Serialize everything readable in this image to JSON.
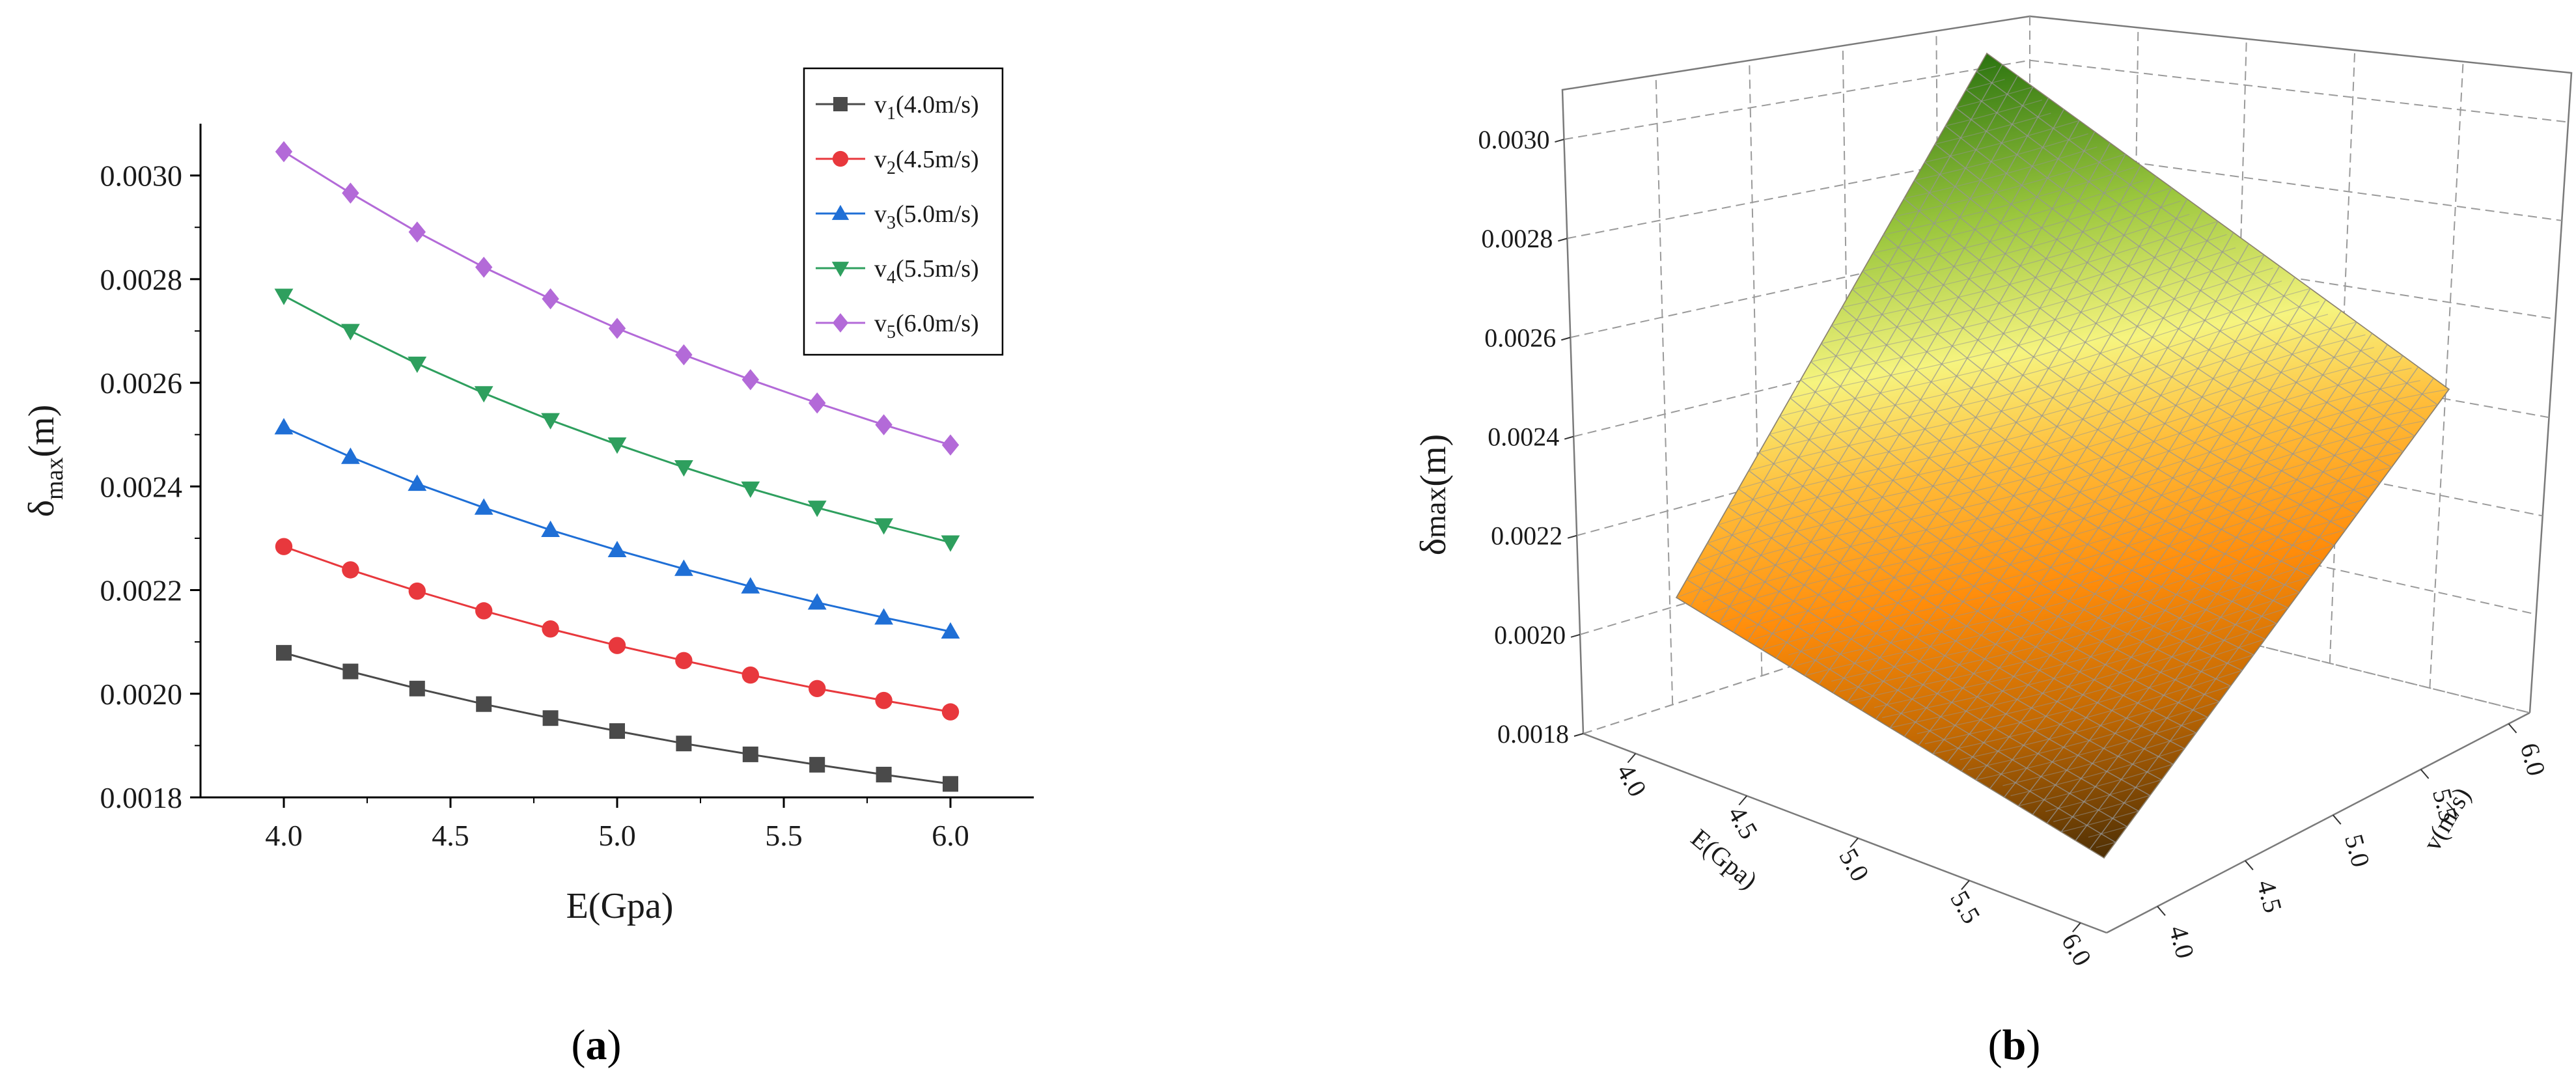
{
  "chart_data": [
    {
      "type": "line",
      "panel_label": {
        "open": "(",
        "letter": "a",
        "close": ")"
      },
      "xlabel": "E(Gpa)",
      "ylabel": {
        "base": "δ",
        "sub": "max",
        "suffix": "(m)"
      },
      "x": [
        4.0,
        4.2,
        4.4,
        4.6,
        4.8,
        5.0,
        5.2,
        5.4,
        5.6,
        5.8,
        6.0
      ],
      "xlim": [
        3.75,
        6.25
      ],
      "ylim": [
        0.0018,
        0.0031
      ],
      "xticks": [
        "4.0",
        "4.5",
        "5.0",
        "5.5",
        "6.0"
      ],
      "xtick_values": [
        4.0,
        4.5,
        5.0,
        5.5,
        6.0
      ],
      "yticks": [
        "0.0018",
        "0.0020",
        "0.0022",
        "0.0024",
        "0.0026",
        "0.0028",
        "0.0030"
      ],
      "ytick_values": [
        0.0018,
        0.002,
        0.0022,
        0.0024,
        0.0026,
        0.0028,
        0.003
      ],
      "legend_position": "top-right",
      "series": [
        {
          "name": "v1(4.0m/s)",
          "label": {
            "v": "v",
            "sub": "1",
            "rest": "(4.0m/s)"
          },
          "color": "#4a4a4a",
          "marker": "square",
          "values": [
            0.002079,
            0.002043,
            0.00201,
            0.00198,
            0.001953,
            0.001928,
            0.001904,
            0.001883,
            0.001863,
            0.001844,
            0.001826
          ]
        },
        {
          "name": "v2(4.5m/s)",
          "label": {
            "v": "v",
            "sub": "2",
            "rest": "(4.5m/s)"
          },
          "color": "#e8383d",
          "marker": "circle",
          "values": [
            0.002284,
            0.002239,
            0.002198,
            0.00216,
            0.002125,
            0.002093,
            0.002064,
            0.002036,
            0.00201,
            0.001987,
            0.001965
          ]
        },
        {
          "name": "v3(5.0m/s)",
          "label": {
            "v": "v",
            "sub": "3",
            "rest": "(5.0m/s)"
          },
          "color": "#1f6fd6",
          "marker": "triangle-up",
          "values": [
            0.002514,
            0.002457,
            0.002405,
            0.002359,
            0.002316,
            0.002277,
            0.002241,
            0.002207,
            0.002176,
            0.002147,
            0.00212
          ]
        },
        {
          "name": "v4(5.5m/s)",
          "label": {
            "v": "v",
            "sub": "4",
            "rest": "(5.5m/s)"
          },
          "color": "#2e9f5e",
          "marker": "triangle-down",
          "values": [
            0.002768,
            0.0027,
            0.002637,
            0.00258,
            0.002528,
            0.002481,
            0.002437,
            0.002396,
            0.002359,
            0.002325,
            0.002292
          ]
        },
        {
          "name": "v5(6.0m/s)",
          "label": {
            "v": "v",
            "sub": "5",
            "rest": "(6.0m/s)"
          },
          "color": "#b36ad8",
          "marker": "diamond",
          "values": [
            0.003046,
            0.002966,
            0.002891,
            0.002823,
            0.002762,
            0.002705,
            0.002654,
            0.002606,
            0.002561,
            0.002519,
            0.00248
          ]
        }
      ]
    },
    {
      "type": "surface",
      "panel_label": {
        "open": "(",
        "letter": "b",
        "close": ")"
      },
      "xlabel": "E(Gpa)",
      "ylabel": "v(m/s)",
      "zlabel": {
        "base": "δ",
        "sub": "max",
        "suffix": "(m)"
      },
      "xticks": [
        "4.0",
        "4.5",
        "5.0",
        "5.5",
        "6.0"
      ],
      "yticks": [
        "4.0",
        "4.5",
        "5.0",
        "5.5",
        "6.0"
      ],
      "zticks": [
        "0.0018",
        "0.0020",
        "0.0022",
        "0.0024",
        "0.0026",
        "0.0028",
        "0.0030"
      ],
      "zlim": [
        0.0018,
        0.0031
      ],
      "corner_values": {
        "E4_v4": 0.002079,
        "E6_v4": 0.001826,
        "E4_v6": 0.003046,
        "E6_v6": 0.00248
      },
      "colormap": [
        "#4d2f05",
        "#e07800",
        "#ffa21a",
        "#f2f27a",
        "#93c13a",
        "#2f7b12"
      ]
    }
  ]
}
